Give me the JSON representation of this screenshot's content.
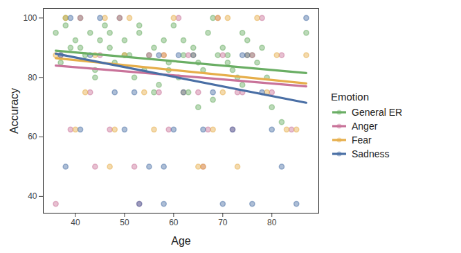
{
  "chart_data": {
    "type": "scatter",
    "x_label": "Age",
    "y_label": "Accuracy",
    "xlim": [
      33.45,
      89.55
    ],
    "xticks": [
      40,
      50,
      60,
      70,
      80
    ],
    "ylim": [
      34.375,
      103.125
    ],
    "yticks": [
      40,
      60,
      80,
      100
    ],
    "legend": "right",
    "legend_title": "Emotion",
    "series": [
      {
        "name": "General ER",
        "color": "#6aae64",
        "x": [
          36,
          37,
          38,
          39,
          40,
          41,
          42,
          43,
          44,
          45,
          46,
          47,
          48,
          49,
          50,
          51,
          52,
          53,
          54,
          55,
          56,
          57,
          58,
          59,
          60,
          61,
          62,
          63,
          64,
          65,
          66,
          67,
          68,
          69,
          70,
          71,
          72,
          73,
          74,
          75,
          76,
          77,
          78,
          79,
          80,
          82,
          87,
          38,
          41,
          44,
          47,
          50,
          53,
          56,
          59,
          62,
          65,
          68,
          71,
          74
        ],
        "values": [
          95,
          85,
          97.5,
          90,
          92.5,
          100,
          87.5,
          95,
          82.5,
          92.5,
          97.5,
          90,
          85,
          100,
          92.5,
          87.5,
          80,
          95,
          82.5,
          87.5,
          90,
          77.5,
          92.5,
          85,
          97.5,
          80,
          87.5,
          75,
          90,
          85,
          82.5,
          95,
          72.5,
          87.5,
          90,
          85,
          82.5,
          80,
          77.5,
          92.5,
          87.5,
          85,
          90,
          80,
          70,
          65,
          95,
          100,
          90,
          80,
          95,
          87.5,
          97.5,
          75,
          82.5,
          92.5,
          70,
          100,
          87.5,
          95
        ],
        "trend": {
          "x": [
            36,
            87
          ],
          "values": [
            89,
            81.5
          ]
        }
      },
      {
        "name": "Anger",
        "color": "#c9739a",
        "x": [
          36,
          37,
          39,
          41,
          43,
          45,
          47,
          49,
          52,
          53,
          55,
          57,
          59,
          61,
          63,
          65,
          67,
          69,
          70,
          72,
          74,
          76,
          78,
          80,
          82,
          84,
          44,
          58,
          66,
          73
        ],
        "values": [
          37.5,
          87.5,
          62.5,
          100,
          75,
          87.5,
          62.5,
          100,
          50,
          37.5,
          87.5,
          75,
          62.5,
          100,
          87.5,
          75,
          62.5,
          100,
          87.5,
          62.5,
          75,
          87.5,
          100,
          75,
          87.5,
          62.5,
          50,
          87.5,
          50,
          75
        ],
        "trend": {
          "x": [
            36,
            87
          ],
          "values": [
            84,
            77
          ]
        }
      },
      {
        "name": "Fear",
        "color": "#e6ae4a",
        "x": [
          36,
          38,
          40,
          42,
          44,
          46,
          48,
          50,
          51,
          54,
          56,
          58,
          60,
          62,
          64,
          66,
          68,
          70,
          71,
          73,
          75,
          77,
          79,
          81,
          83,
          85,
          87,
          47,
          65,
          69
        ],
        "values": [
          87.5,
          100,
          62.5,
          75,
          87.5,
          100,
          62.5,
          87.5,
          100,
          75,
          62.5,
          87.5,
          100,
          75,
          87.5,
          50,
          62.5,
          75,
          100,
          50,
          87.5,
          100,
          75,
          87.5,
          62.5,
          62.5,
          87.5,
          50,
          50,
          100
        ],
        "trend": {
          "x": [
            36,
            87
          ],
          "values": [
            86.5,
            78
          ]
        }
      },
      {
        "name": "Sadness",
        "color": "#4a6fa5",
        "x": [
          37,
          38,
          39,
          41,
          43,
          45,
          48,
          50,
          53,
          55,
          57,
          58,
          60,
          62,
          64,
          66,
          68,
          70,
          72,
          74,
          76,
          78,
          80,
          82,
          85,
          87,
          58,
          61,
          75,
          52
        ],
        "values": [
          87.5,
          50,
          100,
          62.5,
          87.5,
          100,
          75,
          62.5,
          37.5,
          50,
          87.5,
          37.5,
          62.5,
          75,
          87.5,
          62.5,
          75,
          37.5,
          62.5,
          87.5,
          37.5,
          75,
          62.5,
          50,
          37.5,
          100,
          50,
          87.5,
          87.5,
          75
        ],
        "trend": {
          "x": [
            36,
            87
          ],
          "values": [
            88,
            71.5
          ]
        }
      }
    ]
  }
}
